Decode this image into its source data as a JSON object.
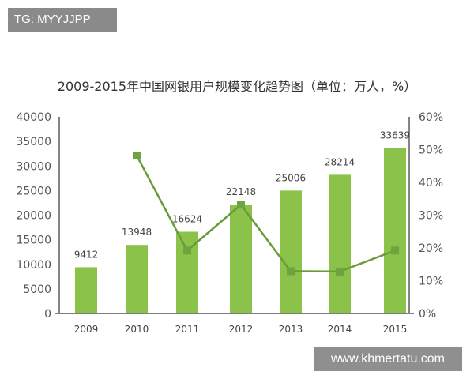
{
  "watermark_top": "TG: MYYJJPP",
  "watermark_bottom": "www.khmertatu.com",
  "chart_data": {
    "type": "bar",
    "title": "2009-2015年中国网银用户规模变化趋势图（单位：万人，%）",
    "categories": [
      "2009",
      "2010",
      "2011",
      "2012",
      "2013",
      "2014",
      "2015"
    ],
    "series": [
      {
        "type": "bar",
        "axis": "left",
        "values": [
          9412,
          13948,
          16624,
          22148,
          25006,
          28214,
          33639
        ],
        "labels": [
          "9412",
          "13948",
          "16624",
          "22148",
          "25006",
          "28214",
          "33639"
        ],
        "color": "#8bc34a"
      },
      {
        "type": "line",
        "axis": "right",
        "values": [
          null,
          48.2,
          19.2,
          33.2,
          12.9,
          12.8,
          19.2
        ],
        "color": "#6a9a3a"
      }
    ],
    "ylim": [
      0,
      40000
    ],
    "yticks": [
      "0",
      "5000",
      "10000",
      "15000",
      "20000",
      "25000",
      "30000",
      "35000",
      "40000"
    ],
    "y2lim": [
      0,
      60
    ],
    "y2ticks": [
      "0%",
      "10%",
      "20%",
      "30%",
      "40%",
      "50%",
      "60%"
    ],
    "grid": false
  }
}
